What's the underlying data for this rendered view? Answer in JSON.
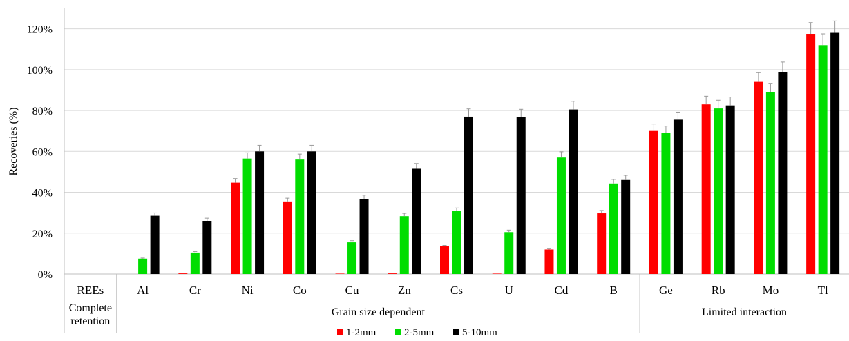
{
  "chart_data": {
    "type": "bar",
    "title": "",
    "ylabel": "Recoveries (%)",
    "xlabel": "",
    "ylim": [
      0,
      130
    ],
    "yticks": [
      0,
      20,
      40,
      60,
      80,
      100,
      120
    ],
    "ytick_labels": [
      "0%",
      "20%",
      "40%",
      "60%",
      "80%",
      "100%",
      "120%"
    ],
    "grid": true,
    "legend_position": "bottom",
    "categories": [
      "REEs",
      "Al",
      "Cr",
      "Ni",
      "Co",
      "Cu",
      "Zn",
      "Cs",
      "U",
      "Cd",
      "B",
      "Ge",
      "Rb",
      "Mo",
      "Tl"
    ],
    "groups": [
      {
        "label": "Complete retention",
        "label_lines": [
          "Complete",
          "retention"
        ],
        "categories": [
          "REEs"
        ]
      },
      {
        "label": "Grain size dependent",
        "label_lines": [
          "Grain size dependent"
        ],
        "categories": [
          "Al",
          "Cr",
          "Ni",
          "Co",
          "Cu",
          "Zn",
          "Cs",
          "U",
          "Cd",
          "B"
        ]
      },
      {
        "label": "Limited interaction",
        "label_lines": [
          "Limited interaction"
        ],
        "categories": [
          "Ge",
          "Rb",
          "Mo",
          "Tl"
        ]
      }
    ],
    "series": [
      {
        "name": "1-2mm",
        "color": "#ff0000",
        "values": [
          0,
          0,
          0.3,
          44.7,
          35.5,
          0.2,
          0.3,
          13.5,
          0.2,
          12.0,
          29.7,
          70.0,
          83.0,
          94.0,
          117.5
        ],
        "errors": [
          0,
          0,
          0,
          2.0,
          1.6,
          0,
          0,
          0.5,
          0,
          0.6,
          1.4,
          3.4,
          4.0,
          4.5,
          5.5
        ]
      },
      {
        "name": "2-5mm",
        "color": "#00dd00",
        "values": [
          0,
          7.5,
          10.5,
          56.5,
          56.0,
          15.5,
          28.3,
          30.8,
          20.5,
          57.0,
          44.3,
          69.0,
          81.0,
          89.0,
          112.0
        ],
        "errors": [
          0,
          0.3,
          0.5,
          2.8,
          2.7,
          0.8,
          1.4,
          1.5,
          1.0,
          2.8,
          2.0,
          3.4,
          4.0,
          4.3,
          5.5
        ]
      },
      {
        "name": "5-10mm",
        "color": "#000000",
        "values": [
          0,
          28.5,
          26.0,
          60.0,
          60.0,
          36.8,
          51.5,
          77.0,
          76.8,
          80.5,
          46.0,
          75.5,
          82.5,
          98.8,
          118.0
        ],
        "errors": [
          0,
          1.4,
          1.3,
          3.0,
          3.0,
          1.8,
          2.6,
          3.8,
          3.8,
          4.0,
          2.3,
          3.7,
          4.1,
          4.9,
          5.8
        ]
      }
    ]
  }
}
